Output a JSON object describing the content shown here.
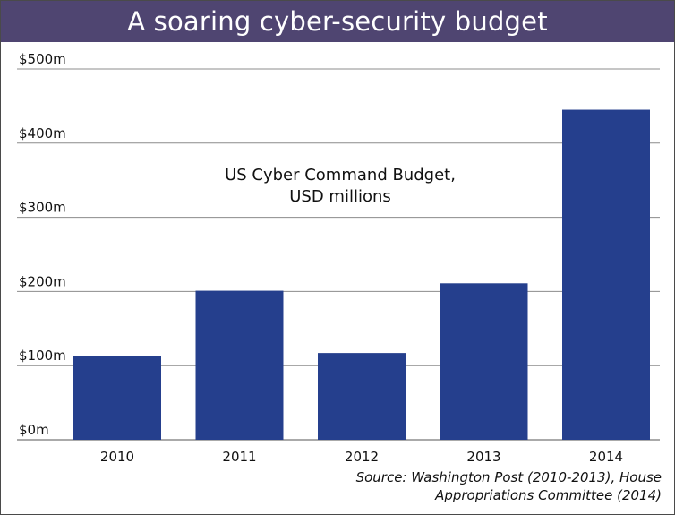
{
  "title": "A soaring cyber-security budget",
  "source": {
    "line1": "Source: Washington Post (2010-2013), House",
    "line2": "Appropriations Committee (2014)"
  },
  "colors": {
    "title_bar": "#4f4571",
    "bar": "#253f8d",
    "grid": "#8c8c8c"
  },
  "chart_data": {
    "type": "bar",
    "title": "A soaring cyber-security budget",
    "annotation": [
      "US Cyber Command Budget,",
      "USD millions"
    ],
    "categories": [
      "2010",
      "2011",
      "2012",
      "2013",
      "2014"
    ],
    "values": [
      113,
      201,
      117,
      211,
      445
    ],
    "ylim": [
      0,
      500
    ],
    "yticks": [
      0,
      100,
      200,
      300,
      400,
      500
    ],
    "ytick_labels": [
      "$0m",
      "$100m",
      "$200m",
      "$300m",
      "$400m",
      "$500m"
    ],
    "xlabel": "",
    "ylabel": "",
    "grid": true
  }
}
